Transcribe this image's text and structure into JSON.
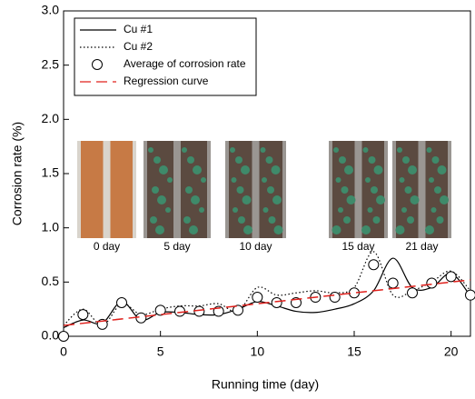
{
  "chart_data": {
    "type": "line",
    "xlabel": "Running time  (day)",
    "ylabel": "Corrosion rate (%)",
    "x": [
      0,
      1,
      2,
      3,
      4,
      5,
      6,
      7,
      8,
      9,
      10,
      11,
      12,
      13,
      14,
      15,
      16,
      17,
      18,
      19,
      20,
      21
    ],
    "series": [
      {
        "name": "Cu  #1",
        "color": "#000000",
        "style": "solid",
        "values": [
          0.08,
          0.15,
          0.12,
          0.32,
          0.15,
          0.22,
          0.22,
          0.2,
          0.2,
          0.25,
          0.32,
          0.28,
          0.23,
          0.22,
          0.25,
          0.3,
          0.42,
          0.72,
          0.45,
          0.45,
          0.58,
          0.37
        ]
      },
      {
        "name": "Cu  #2",
        "color": "#000000",
        "style": "dotted",
        "values": [
          0.1,
          0.25,
          0.1,
          0.3,
          0.2,
          0.25,
          0.28,
          0.28,
          0.3,
          0.23,
          0.45,
          0.38,
          0.4,
          0.42,
          0.4,
          0.45,
          0.78,
          0.38,
          0.42,
          0.5,
          0.6,
          0.42
        ]
      },
      {
        "name": "Average of corrosion rate",
        "color": "#000000",
        "style": "markers",
        "values": [
          0.0,
          0.2,
          0.11,
          0.31,
          0.17,
          0.24,
          0.23,
          0.23,
          0.23,
          0.24,
          0.36,
          0.31,
          0.31,
          0.36,
          0.36,
          0.4,
          0.66,
          0.49,
          0.4,
          0.49,
          0.55,
          0.38
        ]
      },
      {
        "name": "Regression curve",
        "color": "#e0201c",
        "style": "dashed",
        "x": [
          0,
          21
        ],
        "values": [
          0.1,
          0.52
        ]
      }
    ],
    "annotations": [
      "0 day",
      "5 day",
      "10 day",
      "15 day",
      "21 day"
    ],
    "xlim": [
      0,
      21
    ],
    "xticks": [
      0,
      5,
      10,
      15,
      20
    ],
    "ylim": [
      0,
      3.0
    ],
    "yticks": [
      {
        "value": 0,
        "label": "0.0"
      },
      0.5,
      {
        "value": 1,
        "label": "1.0"
      },
      1.5,
      {
        "value": 2,
        "label": "2.0"
      },
      2.5,
      {
        "value": 3,
        "label": "3.0"
      }
    ],
    "legend": "upper-left",
    "grid": false
  }
}
